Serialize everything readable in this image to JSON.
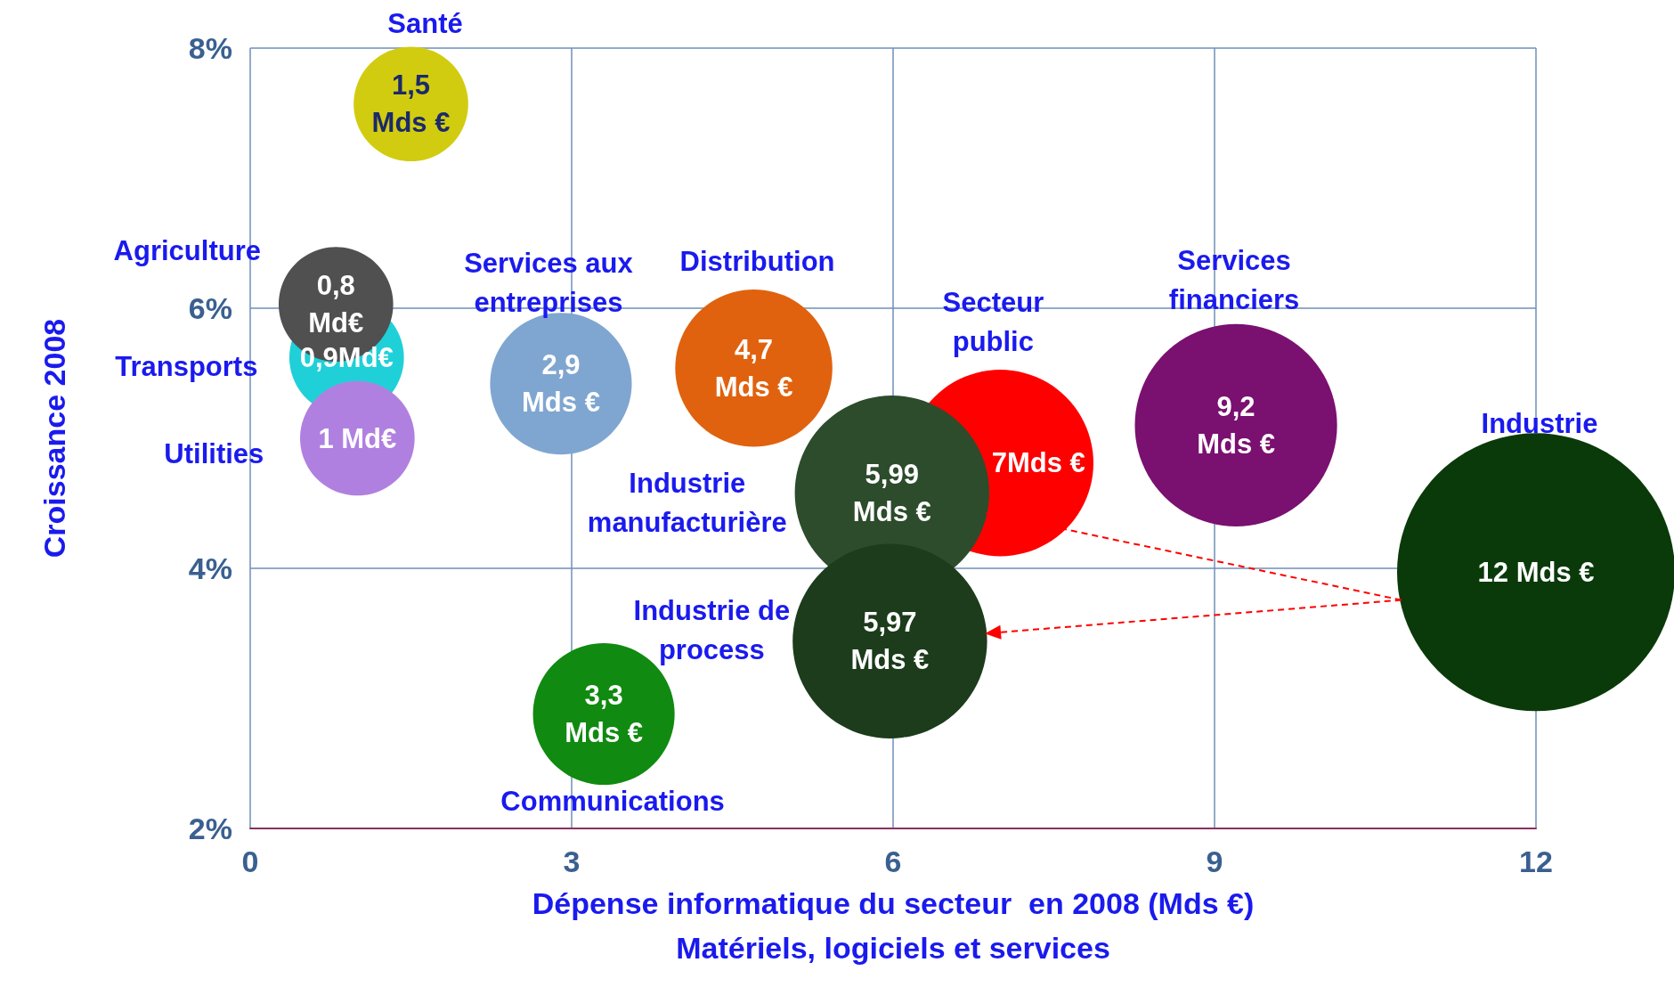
{
  "chart_data": {
    "type": "bubble",
    "xlabel": "Dépense informatique du secteur  en 2008 (Mds €)\nMatériels, logiciels et services",
    "ylabel": "Croissance 2008",
    "xlim": [
      0,
      12
    ],
    "xticks": [
      0,
      3,
      6,
      9,
      12
    ],
    "ylim": [
      2,
      8
    ],
    "yticks": [
      {
        "value": 2,
        "label": "2%"
      },
      {
        "value": 4,
        "label": "4%"
      },
      {
        "value": 6,
        "label": "6%"
      },
      {
        "value": 8,
        "label": "8%"
      }
    ],
    "grid": true,
    "legend": false,
    "marker": "circle",
    "annotations": [
      {
        "text": "1,5\nMds €",
        "x": 1.5,
        "y": 7.57
      },
      {
        "text": "0,9Md€",
        "x": 0.9,
        "y": 5.62
      },
      {
        "text": "0,8\nMd€",
        "x": 0.8,
        "y": 6.03
      },
      {
        "text": "1 Md€",
        "x": 1.0,
        "y": 5.0
      },
      {
        "text": "2,9\nMds €",
        "x": 2.9,
        "y": 5.42
      },
      {
        "text": "4,7\nMds €",
        "x": 4.7,
        "y": 5.54
      },
      {
        "text": "7Mds €",
        "x": 7.0,
        "y": 4.81
      },
      {
        "text": "9,2\nMds €",
        "x": 9.2,
        "y": 5.1
      },
      {
        "text": "12 Mds €",
        "x": 12,
        "y": 3.97
      },
      {
        "text": "5,99\nMds €",
        "x": 5.99,
        "y": 4.58
      },
      {
        "text": "5,97\nMds €",
        "x": 5.97,
        "y": 3.44
      },
      {
        "text": "3,3\nMds €",
        "x": 3.3,
        "y": 2.88
      }
    ],
    "series": [
      {
        "name": "Santé",
        "color": "#d2cc10",
        "x": [
          1.5
        ],
        "values": [
          7.57
        ],
        "sizes": [
          0.17
        ]
      },
      {
        "name": "Transports",
        "color": "#20d0d8",
        "x": [
          0.9
        ],
        "values": [
          5.62
        ],
        "sizes": [
          0.17
        ]
      },
      {
        "name": "Agriculture",
        "color": "#505050",
        "x": [
          0.8
        ],
        "values": [
          6.03
        ],
        "sizes": [
          0.17
        ]
      },
      {
        "name": "Utilities",
        "color": "#b080e0",
        "x": [
          1.0
        ],
        "values": [
          5.0
        ],
        "sizes": [
          0.17
        ]
      },
      {
        "name": "Services aux\nentreprises",
        "color": "#7fa6d0",
        "x": [
          2.9
        ],
        "values": [
          5.42
        ],
        "sizes": [
          0.26
        ]
      },
      {
        "name": "Distribution",
        "color": "#e0620e",
        "x": [
          4.7
        ],
        "values": [
          5.54
        ],
        "sizes": [
          0.32
        ]
      },
      {
        "name": "Secteur\npublic",
        "color": "#ff0000",
        "x": [
          7.0
        ],
        "values": [
          4.81
        ],
        "sizes": [
          0.45
        ]
      },
      {
        "name": "Services\nfinanciers",
        "color": "#7a1070",
        "x": [
          9.2
        ],
        "values": [
          5.1
        ],
        "sizes": [
          0.53
        ]
      },
      {
        "name": "Industrie",
        "color": "#0a3a0a",
        "x": [
          12
        ],
        "values": [
          3.97
        ],
        "sizes": [
          1
        ]
      },
      {
        "name": "Industrie\nmanufacturière",
        "color": "#2c4c2c",
        "x": [
          5.99
        ],
        "values": [
          4.58
        ],
        "sizes": [
          0.49
        ]
      },
      {
        "name": "Industrie de\nprocess",
        "color": "#1c3c1c",
        "x": [
          5.97
        ],
        "values": [
          3.44
        ],
        "sizes": [
          0.49
        ]
      },
      {
        "name": "Communications",
        "color": "#108a10",
        "x": [
          3.3
        ],
        "values": [
          2.88
        ],
        "sizes": [
          0.26
        ]
      }
    ]
  }
}
